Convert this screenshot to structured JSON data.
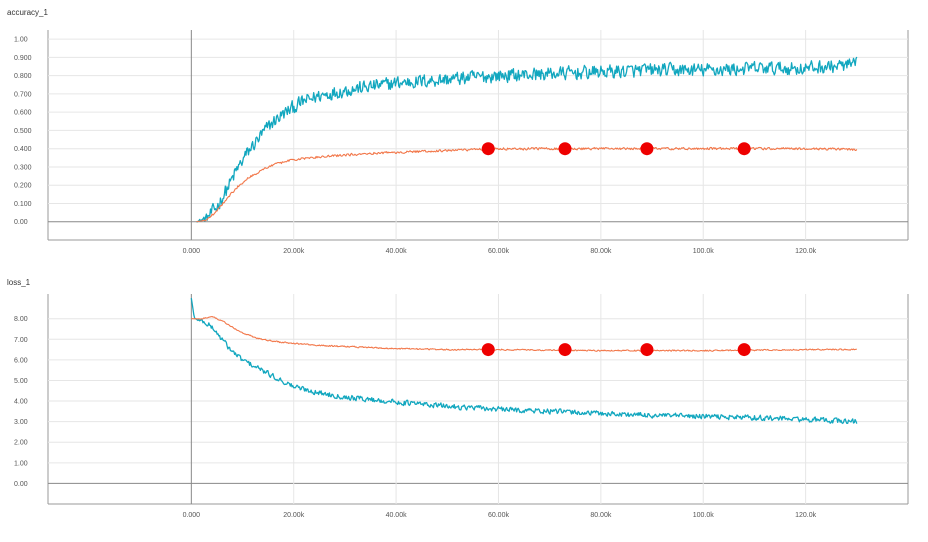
{
  "chart_data": [
    {
      "type": "line",
      "title": "accuracy_1",
      "xlabel": "",
      "ylabel": "",
      "xlim": [
        -28000,
        140000
      ],
      "ylim": [
        -0.1,
        1.05
      ],
      "grid": true,
      "x_ticks": [
        0,
        20000,
        40000,
        60000,
        80000,
        100000,
        120000
      ],
      "x_tick_labels": [
        "0.000",
        "20.00k",
        "40.00k",
        "60.00k",
        "80.00k",
        "100.0k",
        "120.0k"
      ],
      "y_ticks": [
        0.0,
        0.1,
        0.2,
        0.3,
        0.4,
        0.5,
        0.6,
        0.7,
        0.8,
        0.9,
        1.0
      ],
      "y_tick_labels": [
        "0.00",
        "0.100",
        "0.200",
        "0.300",
        "0.400",
        "0.500",
        "0.600",
        "0.700",
        "0.800",
        "0.900",
        "1.00"
      ],
      "series": [
        {
          "name": "teal",
          "color": "#12a7bf",
          "noise": 0.035,
          "x": [
            1000,
            3000,
            5000,
            7000,
            9000,
            11000,
            13000,
            15000,
            17000,
            19000,
            22000,
            25000,
            30000,
            35000,
            40000,
            50000,
            60000,
            70000,
            80000,
            90000,
            100000,
            110000,
            120000,
            130000
          ],
          "values": [
            0.0,
            0.02,
            0.08,
            0.18,
            0.29,
            0.38,
            0.45,
            0.52,
            0.57,
            0.61,
            0.66,
            0.69,
            0.72,
            0.74,
            0.76,
            0.78,
            0.8,
            0.81,
            0.82,
            0.83,
            0.83,
            0.84,
            0.84,
            0.86
          ]
        },
        {
          "name": "orange",
          "color": "#f2784b",
          "noise": 0.006,
          "x": [
            1000,
            3000,
            5000,
            7000,
            9000,
            11000,
            13000,
            15000,
            17000,
            20000,
            25000,
            30000,
            35000,
            40000,
            50000,
            60000,
            80000,
            100000,
            120000,
            130000
          ],
          "values": [
            0.0,
            0.01,
            0.06,
            0.13,
            0.19,
            0.24,
            0.27,
            0.3,
            0.32,
            0.34,
            0.355,
            0.365,
            0.375,
            0.38,
            0.39,
            0.4,
            0.4,
            0.4,
            0.4,
            0.395
          ]
        }
      ],
      "markers": {
        "color": "#ee0000",
        "x": [
          58000,
          73000,
          89000,
          108000
        ],
        "values": [
          0.4,
          0.4,
          0.4,
          0.4
        ]
      }
    },
    {
      "type": "line",
      "title": "loss_1",
      "xlabel": "",
      "ylabel": "",
      "xlim": [
        -28000,
        140000
      ],
      "ylim": [
        -1.0,
        9.2
      ],
      "grid": true,
      "x_ticks": [
        0,
        20000,
        40000,
        60000,
        80000,
        100000,
        120000
      ],
      "x_tick_labels": [
        "0.000",
        "20.00k",
        "40.00k",
        "60.00k",
        "80.00k",
        "100.0k",
        "120.0k"
      ],
      "y_ticks": [
        0,
        1,
        2,
        3,
        4,
        5,
        6,
        7,
        8
      ],
      "y_tick_labels": [
        "0.00",
        "1.00",
        "2.00",
        "3.00",
        "4.00",
        "5.00",
        "6.00",
        "7.00",
        "8.00"
      ],
      "series": [
        {
          "name": "teal",
          "color": "#12a7bf",
          "noise": 0.12,
          "x": [
            0,
            600,
            2000,
            4000,
            6000,
            8000,
            10000,
            13000,
            16000,
            20000,
            25000,
            30000,
            40000,
            50000,
            60000,
            70000,
            80000,
            90000,
            100000,
            110000,
            120000,
            130000
          ],
          "values": [
            9.0,
            8.0,
            7.9,
            7.6,
            7.0,
            6.4,
            6.0,
            5.6,
            5.2,
            4.7,
            4.4,
            4.2,
            3.95,
            3.75,
            3.6,
            3.5,
            3.4,
            3.3,
            3.25,
            3.2,
            3.1,
            3.0
          ]
        },
        {
          "name": "orange",
          "color": "#f2784b",
          "noise": 0.03,
          "x": [
            0,
            2000,
            4000,
            6000,
            8000,
            10000,
            13000,
            16000,
            20000,
            25000,
            30000,
            40000,
            50000,
            60000,
            80000,
            100000,
            120000,
            130000
          ],
          "values": [
            8.0,
            8.0,
            8.1,
            7.9,
            7.6,
            7.3,
            7.05,
            6.9,
            6.8,
            6.7,
            6.65,
            6.55,
            6.5,
            6.5,
            6.45,
            6.45,
            6.5,
            6.5
          ]
        }
      ],
      "markers": {
        "color": "#ee0000",
        "x": [
          58000,
          73000,
          89000,
          108000
        ],
        "values": [
          6.5,
          6.5,
          6.5,
          6.5
        ]
      }
    }
  ]
}
